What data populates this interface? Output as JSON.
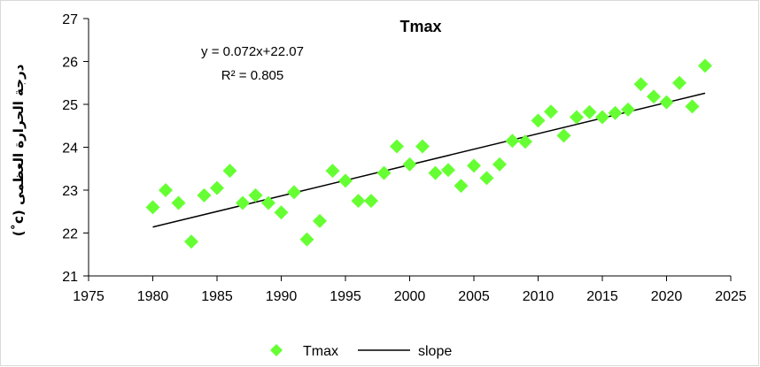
{
  "chart_data": {
    "type": "scatter",
    "title": "Tmax",
    "ylabel": "درجة الحرارة العظمى (c˚)",
    "xlabel": "",
    "xlim": [
      1975,
      2025
    ],
    "ylim": [
      21,
      27
    ],
    "xticks": [
      "1975",
      "1980",
      "1985",
      "1990",
      "1995",
      "2000",
      "2005",
      "2010",
      "2015",
      "2020",
      "2025"
    ],
    "yticks": [
      "21",
      "22",
      "23",
      "24",
      "25",
      "26",
      "27"
    ],
    "grid": false,
    "legend_position": "bottom",
    "equation": "y = 0.072x+22.07",
    "r_squared": "R² = 0.805",
    "series": [
      {
        "name": "Tmax",
        "marker": "diamond",
        "color": "#66ff33",
        "x": [
          1980,
          1981,
          1982,
          1983,
          1984,
          1985,
          1986,
          1987,
          1988,
          1989,
          1990,
          1991,
          1992,
          1993,
          1994,
          1995,
          1996,
          1997,
          1998,
          1999,
          2000,
          2001,
          2002,
          2003,
          2004,
          2005,
          2006,
          2007,
          2008,
          2009,
          2010,
          2011,
          2012,
          2013,
          2014,
          2015,
          2016,
          2017,
          2018,
          2019,
          2020,
          2021,
          2022,
          2023
        ],
        "y": [
          22.6,
          23.0,
          22.7,
          21.8,
          22.88,
          23.05,
          23.45,
          22.7,
          22.88,
          22.7,
          22.48,
          22.95,
          21.85,
          22.28,
          23.45,
          23.22,
          22.75,
          22.75,
          23.4,
          24.02,
          23.6,
          24.02,
          23.4,
          23.47,
          23.1,
          23.57,
          23.28,
          23.6,
          24.15,
          24.13,
          24.62,
          24.83,
          24.27,
          24.7,
          24.82,
          24.7,
          24.8,
          24.88,
          25.47,
          25.18,
          25.05,
          25.5,
          24.95,
          25.9
        ]
      },
      {
        "name": "slope",
        "type": "line",
        "color": "#000000",
        "x": [
          1980,
          2023
        ],
        "y": [
          22.14,
          25.26
        ]
      }
    ]
  }
}
